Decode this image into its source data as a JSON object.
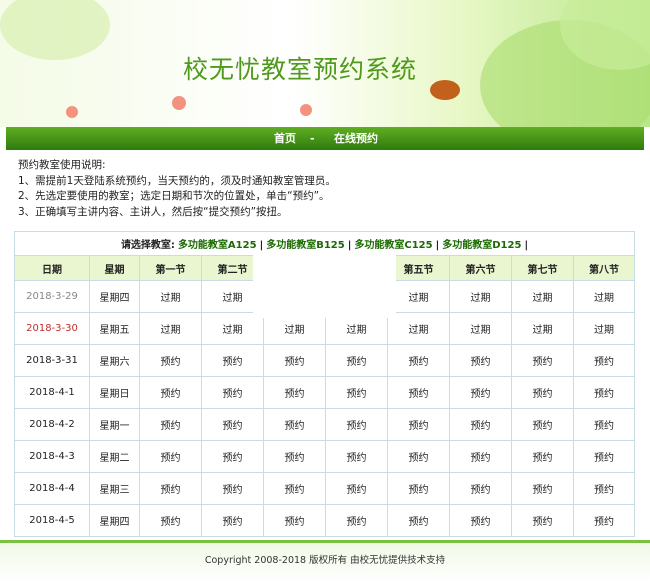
{
  "header": {
    "title": "校无忧教室预约系统"
  },
  "nav": {
    "items": [
      "首页",
      "-",
      "在线预约"
    ]
  },
  "instructions": [
    "预约教室使用说明:",
    "1、需提前1天登陆系统预约，当天预约的，须及时通知教室管理员。",
    "2、先选定要使用的教室；选定日期和节次的位置处，单击“预约”。",
    "3、正确填写主讲内容、主讲人，然后按“提交预约”按扭。"
  ],
  "table": {
    "room_label": "请选择教室:",
    "rooms": [
      "多功能教室A125",
      "多功能教室B125",
      "多功能教室C125",
      "多功能教室D125"
    ],
    "separator": "|",
    "columns": [
      "日期",
      "星期",
      "第一节",
      "第二节",
      null,
      null,
      "第五节",
      "第六节",
      "第七节",
      "第八节"
    ],
    "rows": [
      {
        "date": "2018-3-29",
        "weekday": "星期四",
        "slots": [
          "过期",
          "过期",
          null,
          null,
          "过期",
          "过期",
          "过期",
          "过期"
        ]
      },
      {
        "date": "2018-3-30",
        "weekday": "星期五",
        "slots": [
          "过期",
          "过期",
          "过期",
          "过期",
          "过期",
          "过期",
          "过期",
          "过期"
        ]
      },
      {
        "date": "2018-3-31",
        "weekday": "星期六",
        "slots": [
          "预约",
          "预约",
          "预约",
          "预约",
          "预约",
          "预约",
          "预约",
          "预约"
        ]
      },
      {
        "date": "2018-4-1",
        "weekday": "星期日",
        "slots": [
          "预约",
          "预约",
          "预约",
          "预约",
          "预约",
          "预约",
          "预约",
          "预约"
        ]
      },
      {
        "date": "2018-4-2",
        "weekday": "星期一",
        "slots": [
          "预约",
          "预约",
          "预约",
          "预约",
          "预约",
          "预约",
          "预约",
          "预约"
        ]
      },
      {
        "date": "2018-4-3",
        "weekday": "星期二",
        "slots": [
          "预约",
          "预约",
          "预约",
          "预约",
          "预约",
          "预约",
          "预约",
          "预约"
        ]
      },
      {
        "date": "2018-4-4",
        "weekday": "星期三",
        "slots": [
          "预约",
          "预约",
          "预约",
          "预约",
          "预约",
          "预约",
          "预约",
          "预约"
        ]
      },
      {
        "date": "2018-4-5",
        "weekday": "星期四",
        "slots": [
          "预约",
          "预约",
          "预约",
          "预约",
          "预约",
          "预约",
          "预约",
          "预约"
        ]
      }
    ]
  },
  "footer": {
    "copyright": "Copyright 2008-2018 版权所有 由校无忧提供技术支持"
  }
}
